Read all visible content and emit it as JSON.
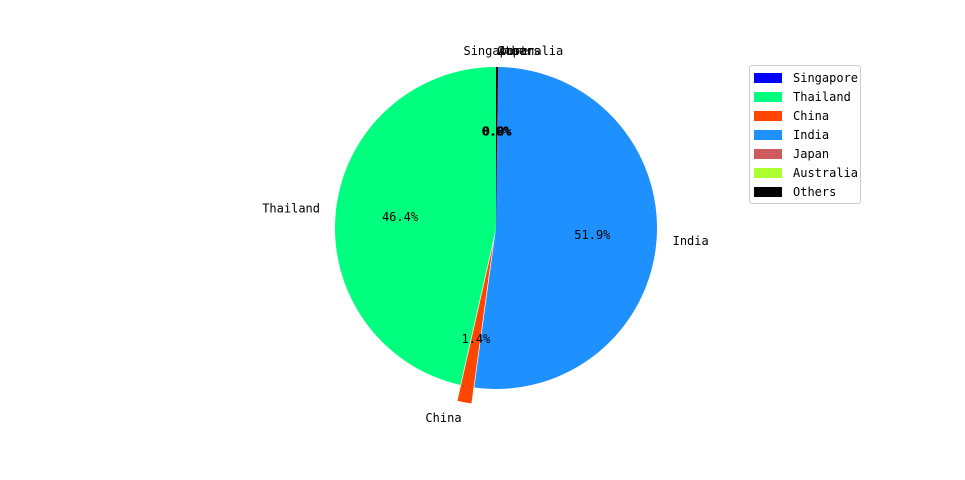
{
  "chart_data": {
    "type": "pie",
    "title": "",
    "categories": [
      "Singapore",
      "Thailand",
      "China",
      "India",
      "Japan",
      "Australia",
      "Others"
    ],
    "values": [
      0.0,
      46.4,
      1.4,
      51.9,
      0.0,
      0.0,
      0.2
    ],
    "value_labels": [
      "0.0%",
      "46.4%",
      "1.4%",
      "51.9%",
      "0.0%",
      "0.0%",
      "0.2%"
    ],
    "colors": [
      "#0000ff",
      "#00ff7f",
      "#ff4500",
      "#1e90ff",
      "#cd5c5c",
      "#adff2f",
      "#000000"
    ],
    "exploded": [
      "China"
    ],
    "start_angle": 90,
    "direction": "counterclockwise",
    "legend_position": "top-right"
  }
}
